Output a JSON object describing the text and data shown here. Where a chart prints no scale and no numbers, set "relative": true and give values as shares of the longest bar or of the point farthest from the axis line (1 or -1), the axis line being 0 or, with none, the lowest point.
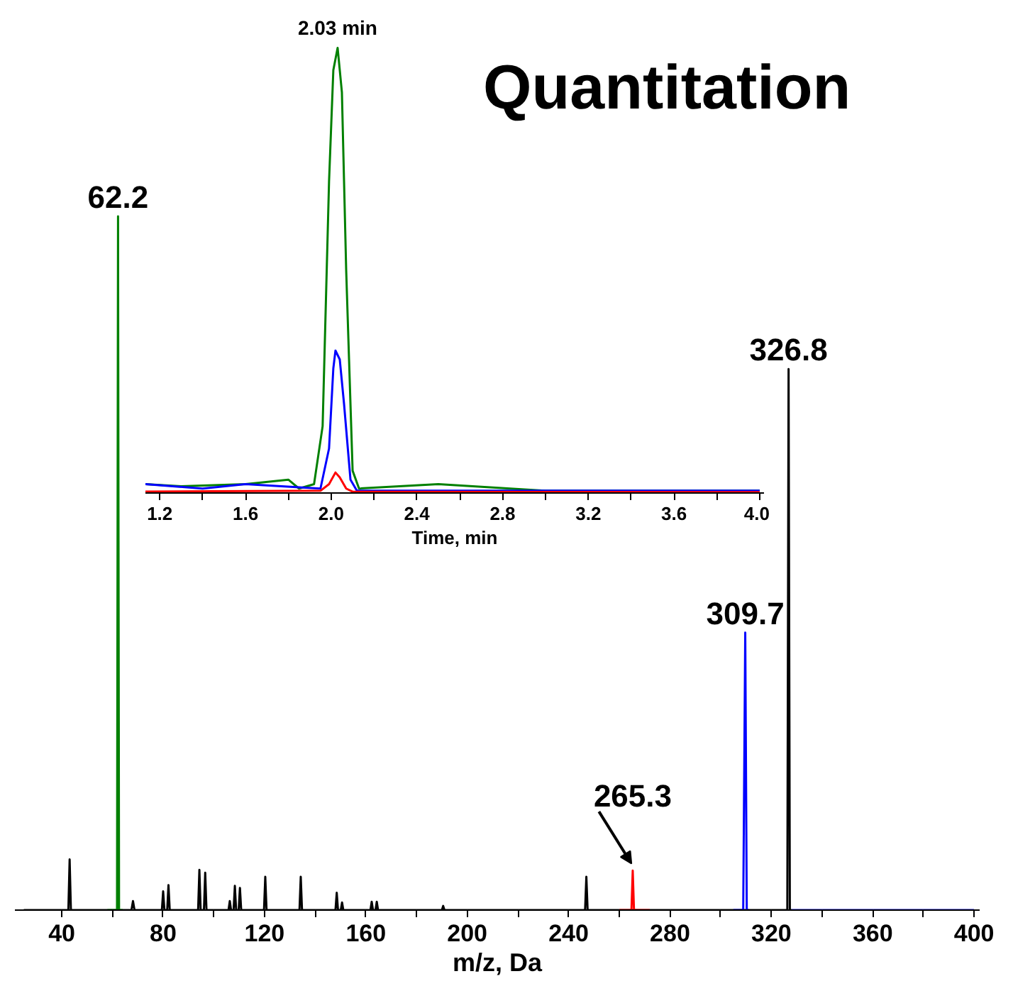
{
  "chart_data": [
    {
      "type": "line",
      "title": "Quantitation",
      "xlabel": "m/z, Da",
      "relative": true,
      "xlim": [
        21.5,
        402.2
      ],
      "xticks": [
        40,
        {
          "value": 60,
          "label": null
        },
        80,
        {
          "value": 100,
          "label": null
        },
        120,
        {
          "value": 140,
          "label": null
        },
        160,
        {
          "value": 180,
          "label": null
        },
        200,
        {
          "value": 220,
          "label": null
        },
        240,
        {
          "value": 260,
          "label": null
        },
        280,
        {
          "value": 300,
          "label": null
        },
        320,
        {
          "value": 340,
          "label": null
        },
        360,
        {
          "value": 380,
          "label": null
        },
        400
      ],
      "series": [
        {
          "color": "#000000",
          "x": [
            25,
            42.6,
            43.1,
            43.6,
            57,
            67.5,
            68.1,
            68.7,
            79.5,
            80,
            80.5,
            81.6,
            82.1,
            82.6,
            93.8,
            94.3,
            94.8,
            96.1,
            96.6,
            97.1,
            105.8,
            106.3,
            106.8,
            107.8,
            108.3,
            108.8,
            109.8,
            110.3,
            110.8,
            119.8,
            120.3,
            120.8,
            133.8,
            134.3,
            134.8,
            148,
            148.5,
            149,
            150.1,
            150.6,
            151.1,
            161.8,
            162.3,
            162.8,
            163.8,
            164.3,
            164.8,
            190,
            190.5,
            191,
            246.5,
            247,
            247.5,
            326.3,
            326.8,
            327.3,
            328
          ],
          "values": [
            0,
            0,
            0.073,
            0,
            0,
            0,
            0.013,
            0,
            0,
            0.027,
            0,
            0,
            0.036,
            0,
            0,
            0.058,
            0,
            0,
            0.054,
            0,
            0,
            0.013,
            0,
            0,
            0.035,
            0,
            0,
            0.032,
            0,
            0,
            0.048,
            0,
            0,
            0.048,
            0,
            0,
            0.025,
            0,
            0,
            0.011,
            0,
            0,
            0.012,
            0,
            0,
            0.012,
            0,
            0,
            0.006,
            0,
            0,
            0.048,
            0,
            0,
            0.78,
            0,
            0
          ]
        },
        {
          "color": "#008000",
          "x": [
            58,
            61.8,
            62.2,
            62.6,
            64
          ],
          "values": [
            0,
            0,
            1,
            0,
            0
          ]
        },
        {
          "color": "#ff0000",
          "x": [
            260,
            264.8,
            265.3,
            265.8,
            272
          ],
          "values": [
            0,
            0,
            0.057,
            0,
            0
          ]
        },
        {
          "color": "#0000ff",
          "x": [
            305,
            308.9,
            309.2,
            309.7,
            310.3,
            311,
            318,
            328,
            400
          ],
          "values": [
            0,
            0,
            0.15,
            0.4,
            0,
            0,
            null,
            0,
            0
          ]
        }
      ],
      "annotations": [
        {
          "text": "62.2",
          "x": 62.2,
          "y": 1
        },
        {
          "text": "326.8",
          "x": 326.8,
          "y": 0.78
        },
        {
          "text": "309.7",
          "x": 309.7,
          "y": 0.4
        },
        {
          "text": "265.3",
          "x": 265.3,
          "y": 0.057
        }
      ]
    },
    {
      "type": "line",
      "xlabel": "Time, min",
      "relative": true,
      "xlim": [
        1.133,
        4.02
      ],
      "xticks": [
        1.2,
        {
          "value": 1.4,
          "label": null
        },
        1.6,
        {
          "value": 1.8,
          "label": null
        },
        {
          "value": 2.0,
          "label": "2.0"
        },
        {
          "value": 2.2,
          "label": null
        },
        2.4,
        {
          "value": 2.6,
          "label": null
        },
        2.8,
        {
          "value": 3.0,
          "label": null
        },
        3.2,
        {
          "value": 3.4,
          "label": null
        },
        3.6,
        {
          "value": 3.8,
          "label": null
        },
        {
          "value": 4.0,
          "label": "4.0"
        }
      ],
      "series": [
        {
          "color": "#008000",
          "x": [
            1.133,
            1.3,
            1.6,
            1.8,
            1.85,
            1.92,
            1.96,
            1.99,
            2.01,
            2.03,
            2.05,
            2.07,
            2.1,
            2.13,
            2.5,
            3.0,
            4.0
          ],
          "values": [
            0.02,
            0.015,
            0.02,
            0.03,
            0.01,
            0.02,
            0.15,
            0.7,
            0.95,
            1.0,
            0.9,
            0.5,
            0.05,
            0.01,
            0.02,
            0.005,
            0.005
          ]
        },
        {
          "color": "#0000ff",
          "x": [
            1.133,
            1.4,
            1.6,
            1.95,
            1.99,
            2.01,
            2.02,
            2.04,
            2.06,
            2.09,
            2.12,
            2.6,
            4.0
          ],
          "values": [
            0.02,
            0.01,
            0.02,
            0.01,
            0.1,
            0.28,
            0.32,
            0.3,
            0.2,
            0.03,
            0.005,
            0.005,
            0.005
          ]
        },
        {
          "color": "#ff0000",
          "x": [
            1.133,
            1.95,
            1.99,
            2.02,
            2.04,
            2.07,
            2.1,
            4.0
          ],
          "values": [
            0.003,
            0.005,
            0.02,
            0.046,
            0.035,
            0.01,
            0.003,
            0.002
          ]
        }
      ],
      "annotations": [
        {
          "text": "2.03 min",
          "x": 2.03,
          "y": 1.0
        }
      ]
    }
  ]
}
